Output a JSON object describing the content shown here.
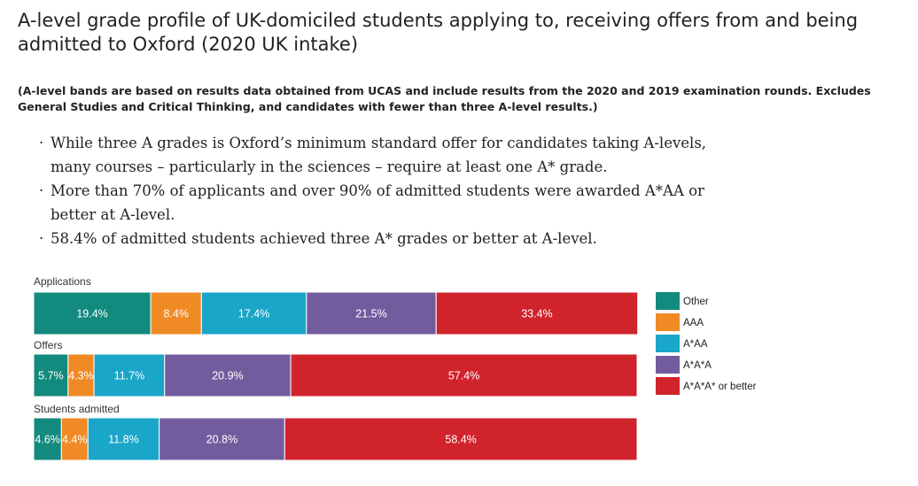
{
  "title": "A-level grade profile of UK-domiciled students applying to, receiving offers from and being admitted to Oxford (2020 UK intake)",
  "note": "(A-level bands are based on results data obtained from UCAS and include results from the 2020 and 2019 examination rounds. Excludes General Studies and Critical Thinking, and candidates with fewer than three A-level results.)",
  "bullets": [
    "While three A grades is Oxford’s minimum standard offer for candidates taking A-levels, many courses – particularly in the sciences – require at least one A* grade.",
    "More than 70% of applicants and over 90% of admitted students were awarded A*AA or better at A-level.",
    "58.4% of admitted students achieved three A* grades or better at A-level."
  ],
  "chart_data": {
    "type": "bar",
    "orientation": "horizontal",
    "stacked": true,
    "normalized_to": 100,
    "unit": "%",
    "categories": [
      "Applications",
      "Offers",
      "Students admitted"
    ],
    "series": [
      {
        "name": "Other",
        "color": "#138a7e",
        "values": [
          19.4,
          5.7,
          4.6
        ],
        "labels": [
          "19.4%",
          "5.7%",
          "4.6%"
        ]
      },
      {
        "name": "AAA",
        "color": "#f08a25",
        "values": [
          8.4,
          4.3,
          4.4
        ],
        "labels": [
          "8.4%",
          "4.3%",
          "4.4%"
        ]
      },
      {
        "name": "A*AA",
        "color": "#1aa6c8",
        "values": [
          17.4,
          11.7,
          11.8
        ],
        "labels": [
          "17.4%",
          "11.7%",
          "11.8%"
        ]
      },
      {
        "name": "A*A*A",
        "color": "#735c9e",
        "values": [
          21.5,
          20.9,
          20.8
        ],
        "labels": [
          "21.5%",
          "20.9%",
          "20.8%"
        ]
      },
      {
        "name": "A*A*A* or better",
        "color": "#d0232c",
        "values": [
          33.4,
          57.4,
          58.4
        ],
        "labels": [
          "33.4%",
          "57.4%",
          "58.4%"
        ]
      }
    ],
    "legend_position": "right"
  }
}
